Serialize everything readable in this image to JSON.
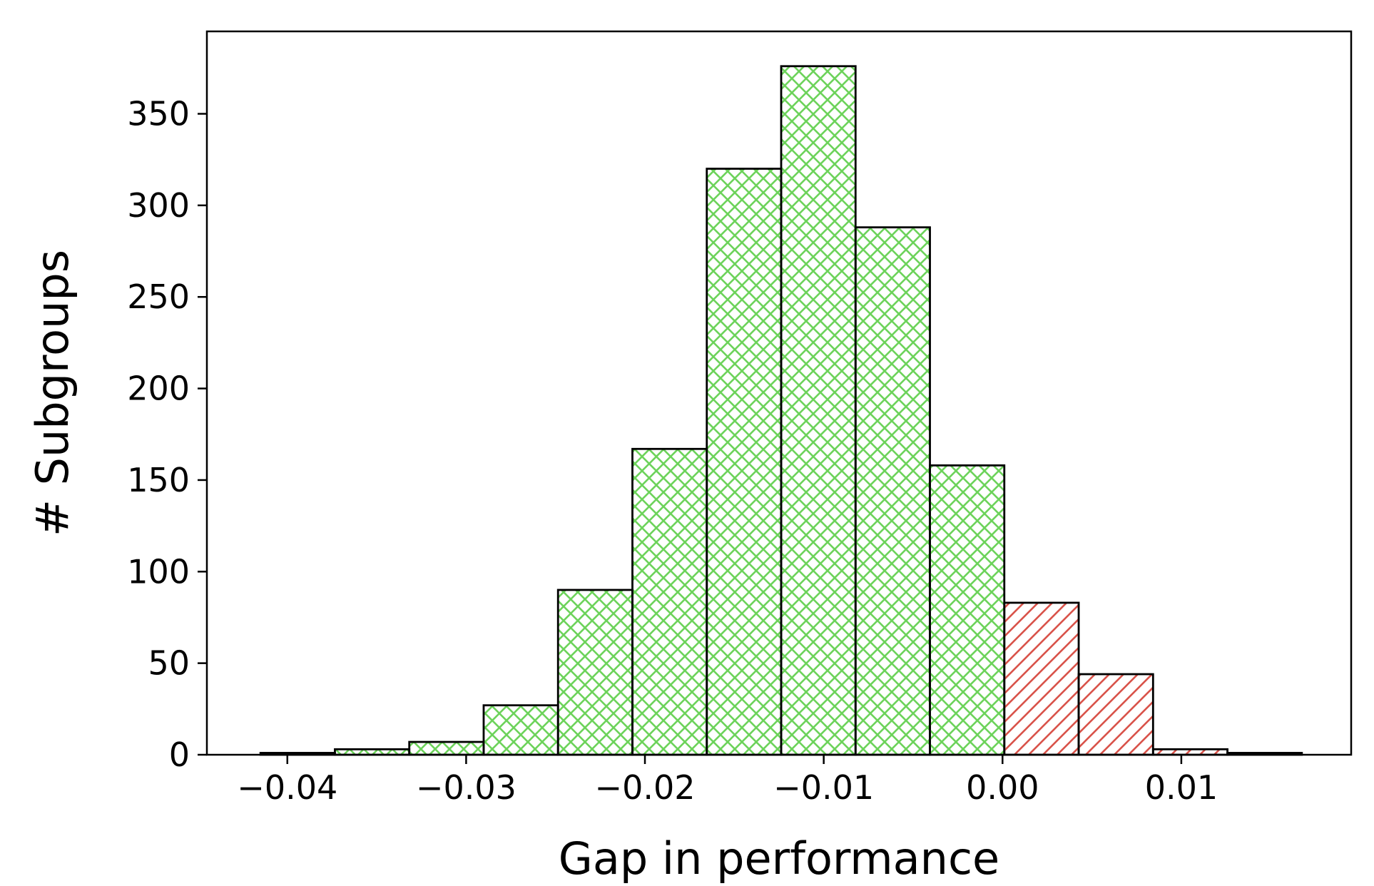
{
  "chart_data": {
    "type": "bar",
    "subtype": "histogram",
    "title": "",
    "xlabel": "Gap in performance",
    "ylabel": "# Subgroups",
    "xlim": [
      -0.0445,
      0.0195
    ],
    "ylim": [
      0,
      395
    ],
    "xticks": [
      {
        "value": -0.04,
        "label": "−0.04"
      },
      {
        "value": -0.03,
        "label": "−0.03"
      },
      {
        "value": -0.02,
        "label": "−0.02"
      },
      {
        "value": -0.01,
        "label": "−0.01"
      },
      {
        "value": 0.0,
        "label": "0.00"
      },
      {
        "value": 0.01,
        "label": "0.01"
      }
    ],
    "yticks": [
      {
        "value": 0,
        "label": "0"
      },
      {
        "value": 50,
        "label": "50"
      },
      {
        "value": 100,
        "label": "100"
      },
      {
        "value": 150,
        "label": "150"
      },
      {
        "value": 200,
        "label": "200"
      },
      {
        "value": 250,
        "label": "250"
      },
      {
        "value": 300,
        "label": "300"
      },
      {
        "value": 350,
        "label": "350"
      }
    ],
    "bin_edges": [
      -0.0415,
      -0.03734,
      -0.03318,
      -0.02902,
      -0.02486,
      -0.0207,
      -0.01654,
      -0.01238,
      -0.00822,
      -0.00406,
      0.0001,
      0.00426,
      0.00842,
      0.01258,
      0.01674
    ],
    "counts": [
      1,
      3,
      7,
      27,
      90,
      167,
      320,
      376,
      288,
      158,
      83,
      44,
      3,
      1
    ],
    "series": [
      {
        "values": [
          1,
          3,
          7,
          27,
          90,
          167,
          320,
          376,
          288,
          158,
          0,
          0,
          0,
          0
        ],
        "color": "#6dd35b",
        "hatch": "crosshatch"
      },
      {
        "values": [
          0,
          0,
          0,
          0,
          0,
          0,
          0,
          0,
          0,
          0,
          83,
          44,
          3,
          1
        ],
        "color": "#d9534a",
        "hatch": "diagonal"
      }
    ],
    "grid": false,
    "legend": null
  }
}
